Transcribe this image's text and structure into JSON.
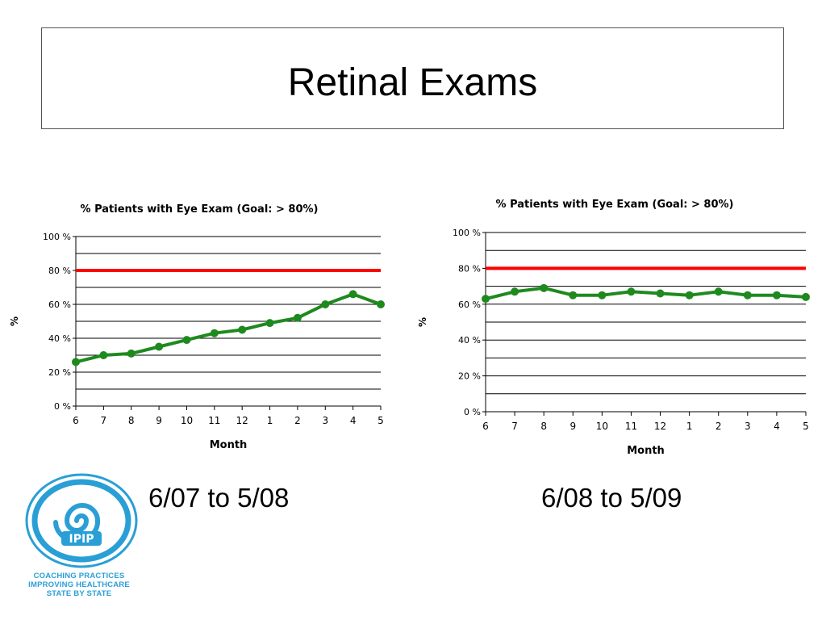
{
  "slide": {
    "title": "Retinal Exams",
    "captions": [
      "6/07 to 5/08",
      "6/08 to 5/09"
    ]
  },
  "logo": {
    "mark": "IPIP",
    "lines": [
      "COACHING PRACTICES",
      "IMPROVING HEALTHCARE",
      "STATE BY STATE"
    ],
    "color": "#2a9fd6"
  },
  "chart_data": [
    {
      "type": "line",
      "title": "% Patients with Eye Exam (Goal: > 80%)",
      "xlabel": "Month",
      "ylabel": "%",
      "categories": [
        "6",
        "7",
        "8",
        "9",
        "10",
        "11",
        "12",
        "1",
        "2",
        "3",
        "4",
        "5"
      ],
      "series": [
        {
          "values": [
            26,
            30,
            31,
            35,
            39,
            43,
            45,
            49,
            52,
            60,
            66,
            60
          ],
          "color": "#1e8a1e"
        }
      ],
      "goal": {
        "value": 80,
        "color": "#ff0000"
      },
      "ylim": [
        0,
        100
      ],
      "yticks": [
        "0 %",
        "20 %",
        "40 %",
        "60 %",
        "80 %",
        "100 %"
      ],
      "grid": true,
      "legend": "none"
    },
    {
      "type": "line",
      "title": "% Patients with Eye Exam (Goal: > 80%)",
      "xlabel": "Month",
      "ylabel": "%",
      "categories": [
        "6",
        "7",
        "8",
        "9",
        "10",
        "11",
        "12",
        "1",
        "2",
        "3",
        "4",
        "5"
      ],
      "series": [
        {
          "values": [
            63,
            67,
            69,
            65,
            65,
            67,
            66,
            65,
            67,
            65,
            65,
            64
          ],
          "color": "#1e8a1e"
        }
      ],
      "goal": {
        "value": 80,
        "color": "#ff0000"
      },
      "ylim": [
        0,
        100
      ],
      "yticks": [
        "0 %",
        "20 %",
        "40 %",
        "60 %",
        "80 %",
        "100 %"
      ],
      "grid": true,
      "legend": "none"
    }
  ]
}
